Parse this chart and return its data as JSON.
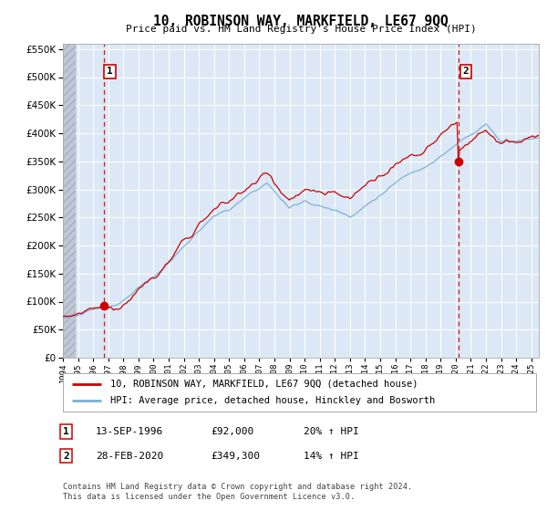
{
  "title": "10, ROBINSON WAY, MARKFIELD, LE67 9QQ",
  "subtitle": "Price paid vs. HM Land Registry's House Price Index (HPI)",
  "legend_line1": "10, ROBINSON WAY, MARKFIELD, LE67 9QQ (detached house)",
  "legend_line2": "HPI: Average price, detached house, Hinckley and Bosworth",
  "annotation1_date": "13-SEP-1996",
  "annotation1_price": "£92,000",
  "annotation1_hpi": "20% ↑ HPI",
  "annotation2_date": "28-FEB-2020",
  "annotation2_price": "£349,300",
  "annotation2_hpi": "14% ↑ HPI",
  "footer": "Contains HM Land Registry data © Crown copyright and database right 2024.\nThis data is licensed under the Open Government Licence v3.0.",
  "sale1_year": 1996.71,
  "sale1_value": 92000,
  "sale2_year": 2020.16,
  "sale2_value": 349300,
  "hpi_color": "#7bafd4",
  "price_color": "#cc0000",
  "dashed_line_color": "#cc0000",
  "background_color": "#ffffff",
  "plot_bg_color": "#dce8f5",
  "grid_color": "#ffffff",
  "ylim": [
    0,
    560000
  ],
  "xlim_start": 1994.0,
  "xlim_end": 2025.5,
  "ytick_step": 50000
}
